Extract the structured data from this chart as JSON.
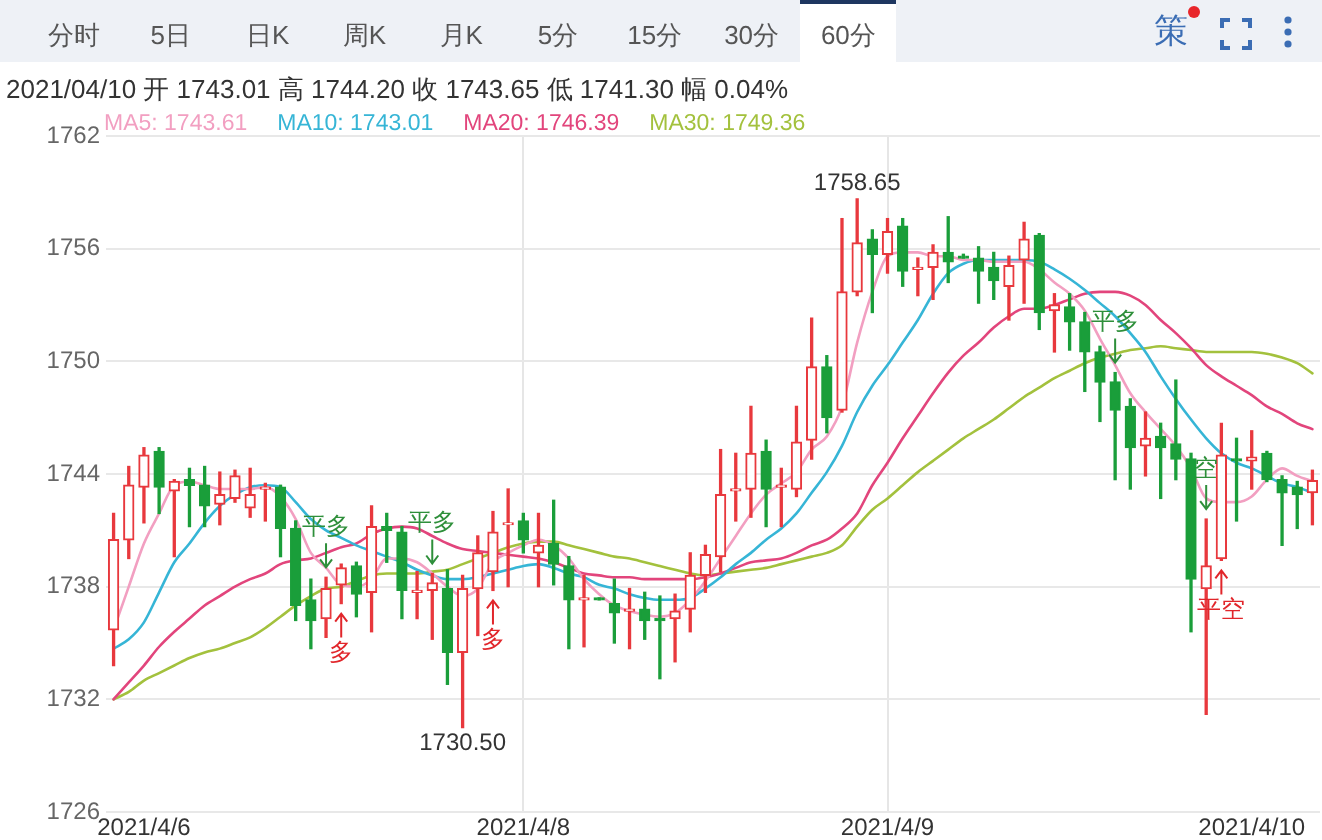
{
  "chart_data": {
    "type": "candlestick",
    "subtitle": "2021/04/10 开 1743.01 高 1744.20 收 1743.65 低 1741.30 幅 0.04%",
    "annotations": [
      "分时",
      "5日",
      "日K",
      "周K",
      "月K",
      "5分",
      "15分",
      "30分",
      "60分",
      "策",
      {
        "text": "平多",
        "y": 1738.5
      },
      {
        "text": "多",
        "y": 1737.1
      },
      {
        "text": "平多",
        "y": 1738.7
      },
      {
        "text": "1730.50",
        "y": 1730.5
      },
      {
        "text": "多",
        "y": 1737.8
      },
      {
        "text": "1758.65",
        "y": 1758.65
      },
      {
        "text": "平多",
        "y": 1749.4
      },
      {
        "text": "空",
        "y": 1741.6
      },
      {
        "text": "平空",
        "y": 1739.4
      }
    ],
    "categories": [
      null,
      null,
      "2021/4/6",
      null,
      null,
      null,
      null,
      null,
      null,
      null,
      null,
      null,
      null,
      null,
      null,
      null,
      null,
      null,
      null,
      null,
      null,
      null,
      null,
      null,
      null,
      null,
      null,
      "2021/4/8",
      null,
      null,
      null,
      null,
      null,
      null,
      null,
      null,
      null,
      null,
      null,
      null,
      null,
      null,
      null,
      null,
      null,
      null,
      null,
      null,
      null,
      null,
      null,
      "2021/4/9",
      null,
      null,
      null,
      null,
      null,
      null,
      null,
      null,
      null,
      null,
      null,
      null,
      null,
      null,
      null,
      null,
      null,
      null,
      null,
      null,
      null,
      null,
      null,
      "2021/4/10",
      null,
      null,
      null,
      null
    ],
    "ohlc": [
      [
        1735.7,
        1741.9,
        1733.8,
        1740.5
      ],
      [
        1740.5,
        1744.4,
        1739.5,
        1743.4
      ],
      [
        1743.3,
        1745.4,
        1741.4,
        1745.0
      ],
      [
        1745.2,
        1745.4,
        1741.9,
        1743.3
      ],
      [
        1743.1,
        1743.7,
        1739.6,
        1743.6
      ],
      [
        1743.7,
        1744.3,
        1741.2,
        1743.4
      ],
      [
        1743.4,
        1744.4,
        1741.2,
        1742.3
      ],
      [
        1742.4,
        1744.1,
        1741.3,
        1742.9
      ],
      [
        1742.7,
        1744.2,
        1742.5,
        1743.9
      ],
      [
        1742.2,
        1744.3,
        1741.7,
        1742.9
      ],
      [
        1743.2,
        1743.5,
        1741.5,
        1743.3
      ],
      [
        1743.3,
        1743.4,
        1739.6,
        1741.1
      ],
      [
        1741.1,
        1741.5,
        1736.2,
        1737.0
      ],
      [
        1737.3,
        1738.4,
        1734.7,
        1736.2
      ],
      [
        1736.3,
        1738.5,
        1735.3,
        1737.9
      ],
      [
        1738.1,
        1739.2,
        1737.1,
        1739.0
      ],
      [
        1739.1,
        1739.3,
        1736.4,
        1737.6
      ],
      [
        1737.7,
        1742.3,
        1735.6,
        1741.2
      ],
      [
        1741.2,
        1741.9,
        1739.3,
        1741.0
      ],
      [
        1740.9,
        1741.2,
        1736.3,
        1737.8
      ],
      [
        1737.7,
        1738.8,
        1736.3,
        1737.8
      ],
      [
        1737.8,
        1738.7,
        1735.2,
        1738.2
      ],
      [
        1737.9,
        1738.9,
        1732.8,
        1734.5
      ],
      [
        1734.5,
        1738.6,
        1730.5,
        1737.9
      ],
      [
        1737.9,
        1740.7,
        1735.4,
        1739.8
      ],
      [
        1738.8,
        1742.0,
        1737.8,
        1740.9
      ],
      [
        1741.3,
        1743.2,
        1738.0,
        1741.4
      ],
      [
        1741.5,
        1741.9,
        1739.8,
        1740.5
      ],
      [
        1739.8,
        1741.9,
        1738.0,
        1740.2
      ],
      [
        1740.3,
        1742.6,
        1738.1,
        1739.2
      ],
      [
        1739.1,
        1739.6,
        1734.7,
        1737.3
      ],
      [
        1737.3,
        1738.6,
        1734.8,
        1737.4
      ],
      [
        1737.4,
        1737.4,
        1737.3,
        1737.3
      ],
      [
        1737.1,
        1738.4,
        1735.0,
        1736.6
      ],
      [
        1736.7,
        1737.9,
        1734.7,
        1736.8
      ],
      [
        1736.8,
        1737.7,
        1735.2,
        1736.2
      ],
      [
        1736.3,
        1737.5,
        1733.1,
        1736.2
      ],
      [
        1736.3,
        1737.6,
        1734.0,
        1736.7
      ],
      [
        1736.8,
        1739.8,
        1735.6,
        1738.6
      ],
      [
        1738.6,
        1740.2,
        1737.7,
        1739.7
      ],
      [
        1739.6,
        1745.3,
        1738.8,
        1742.9
      ],
      [
        1743.1,
        1745.1,
        1741.5,
        1743.2
      ],
      [
        1743.2,
        1747.6,
        1741.7,
        1745.1
      ],
      [
        1745.2,
        1745.8,
        1741.2,
        1743.2
      ],
      [
        1743.3,
        1744.3,
        1741.2,
        1743.4
      ],
      [
        1743.2,
        1747.6,
        1742.8,
        1745.7
      ],
      [
        1745.8,
        1752.3,
        1744.8,
        1749.7
      ],
      [
        1749.7,
        1750.3,
        1746.2,
        1747.0
      ],
      [
        1747.4,
        1757.6,
        1747.3,
        1753.7
      ],
      [
        1753.7,
        1758.65,
        1753.5,
        1756.3
      ],
      [
        1756.5,
        1757.0,
        1752.6,
        1755.7
      ],
      [
        1755.7,
        1757.6,
        1754.7,
        1756.9
      ],
      [
        1757.2,
        1757.6,
        1754.0,
        1754.8
      ],
      [
        1754.9,
        1755.5,
        1753.5,
        1755.0
      ],
      [
        1755.0,
        1756.2,
        1753.3,
        1755.8
      ],
      [
        1755.8,
        1757.7,
        1754.2,
        1755.3
      ],
      [
        1755.6,
        1755.7,
        1755.5,
        1755.5
      ],
      [
        1755.5,
        1756.1,
        1753.1,
        1754.8
      ],
      [
        1755.0,
        1755.8,
        1753.3,
        1754.3
      ],
      [
        1754.0,
        1755.6,
        1752.2,
        1755.1
      ],
      [
        1755.4,
        1757.4,
        1753.1,
        1756.5
      ],
      [
        1756.7,
        1756.8,
        1751.7,
        1752.6
      ],
      [
        1752.7,
        1753.6,
        1750.5,
        1753.0
      ],
      [
        1752.9,
        1753.6,
        1750.6,
        1752.1
      ],
      [
        1752.1,
        1752.6,
        1748.4,
        1750.5
      ],
      [
        1750.5,
        1750.8,
        1746.8,
        1748.9
      ],
      [
        1748.9,
        1749.4,
        1743.7,
        1747.4
      ],
      [
        1747.6,
        1748.0,
        1743.2,
        1745.4
      ],
      [
        1745.5,
        1747.3,
        1743.9,
        1745.9
      ],
      [
        1746.0,
        1746.7,
        1742.7,
        1745.4
      ],
      [
        1745.6,
        1749.0,
        1743.7,
        1744.8
      ],
      [
        1744.8,
        1745.1,
        1735.6,
        1738.4
      ],
      [
        1737.9,
        1741.6,
        1731.2,
        1739.1
      ],
      [
        1739.5,
        1746.7,
        1739.4,
        1745.0
      ],
      [
        1744.8,
        1745.9,
        1741.5,
        1744.7
      ],
      [
        1744.7,
        1746.3,
        1743.2,
        1744.9
      ],
      [
        1745.1,
        1745.2,
        1743.6,
        1743.7
      ],
      [
        1743.7,
        1743.9,
        1740.2,
        1743.0
      ],
      [
        1743.3,
        1743.6,
        1741.1,
        1742.9
      ],
      [
        1743.01,
        1744.2,
        1741.3,
        1743.65
      ]
    ],
    "colors": [
      "#e8383d",
      "#e8383d",
      "#e8383d",
      "#1a9e3a",
      "#e8383d",
      "#1a9e3a",
      "#1a9e3a",
      "#e8383d",
      "#e8383d",
      "#e8383d",
      "#e8383d",
      "#1a9e3a",
      "#1a9e3a",
      "#1a9e3a",
      "#e8383d",
      "#e8383d",
      "#1a9e3a",
      "#e8383d",
      "#1a9e3a",
      "#1a9e3a",
      "#e8383d",
      "#e8383d",
      "#1a9e3a",
      "#e8383d",
      "#e8383d",
      "#e8383d",
      "#e8383d",
      "#1a9e3a",
      "#e8383d",
      "#1a9e3a",
      "#1a9e3a",
      "#e8383d",
      "#1a9e3a",
      "#1a9e3a",
      "#e8383d",
      "#1a9e3a",
      "#1a9e3a",
      "#e8383d",
      "#e8383d",
      "#e8383d",
      "#e8383d",
      "#e8383d",
      "#e8383d",
      "#1a9e3a",
      "#e8383d",
      "#e8383d",
      "#e8383d",
      "#1a9e3a",
      "#e8383d",
      "#e8383d",
      "#1a9e3a",
      "#e8383d",
      "#1a9e3a",
      "#e8383d",
      "#e8383d",
      "#1a9e3a",
      "#1a9e3a",
      "#1a9e3a",
      "#1a9e3a",
      "#e8383d",
      "#e8383d",
      "#1a9e3a",
      "#e8383d",
      "#1a9e3a",
      "#1a9e3a",
      "#1a9e3a",
      "#1a9e3a",
      "#1a9e3a",
      "#e8383d",
      "#1a9e3a",
      "#1a9e3a",
      "#1a9e3a",
      "#e8383d",
      "#e8383d",
      "#1a9e3a",
      "#e8383d",
      "#1a9e3a",
      "#1a9e3a",
      "#1a9e3a",
      "#e8383d"
    ],
    "series": [
      {
        "type": "line",
        "name": "MA5: 1743.61",
        "color": "#f29fc1",
        "values": [
          1735.7,
          1738.0,
          1740.3,
          1741.9,
          1743.4,
          1743.6,
          1743.4,
          1743.2,
          1743.2,
          1743.2,
          1743.3,
          1742.8,
          1741.6,
          1739.8,
          1739.0,
          1738.1,
          1738.0,
          1738.4,
          1739.5,
          1739.5,
          1739.3,
          1738.7,
          1738.0,
          1737.5,
          1737.9,
          1739.3,
          1739.8,
          1740.2,
          1740.5,
          1740.2,
          1739.5,
          1738.4,
          1737.6,
          1737.0,
          1736.7,
          1736.5,
          1736.4,
          1736.6,
          1737.3,
          1738.3,
          1739.5,
          1740.7,
          1741.9,
          1742.9,
          1743.5,
          1744.1,
          1745.3,
          1746.0,
          1747.6,
          1751.0,
          1753.7,
          1755.6,
          1755.8,
          1755.8,
          1755.6,
          1755.6,
          1755.4,
          1755.4,
          1755.3,
          1755.3,
          1755.3,
          1754.9,
          1754.2,
          1753.6,
          1752.7,
          1751.2,
          1749.8,
          1748.3,
          1747.3,
          1746.4,
          1745.5,
          1744.3,
          1742.7,
          1742.5,
          1742.5,
          1742.8,
          1743.7,
          1744.3,
          1743.9,
          1743.61
        ]
      },
      {
        "type": "line",
        "name": "MA10: 1743.01",
        "color": "#36b5d6",
        "values": [
          1734.7,
          1735.2,
          1736.1,
          1737.7,
          1739.3,
          1740.3,
          1741.4,
          1742.3,
          1742.9,
          1743.3,
          1743.4,
          1743.3,
          1742.5,
          1741.6,
          1741.0,
          1740.6,
          1740.2,
          1739.9,
          1739.6,
          1739.3,
          1738.9,
          1738.6,
          1738.4,
          1738.4,
          1738.5,
          1738.7,
          1738.9,
          1739.1,
          1739.2,
          1739.0,
          1738.7,
          1738.5,
          1738.1,
          1737.9,
          1737.6,
          1737.4,
          1737.3,
          1737.3,
          1737.4,
          1737.9,
          1738.5,
          1739.2,
          1739.8,
          1740.5,
          1741.1,
          1741.9,
          1743.0,
          1744.1,
          1745.5,
          1747.3,
          1748.7,
          1749.8,
          1751.0,
          1752.2,
          1753.6,
          1754.7,
          1755.2,
          1755.4,
          1755.4,
          1755.4,
          1755.4,
          1755.3,
          1754.9,
          1754.4,
          1753.8,
          1753.1,
          1752.4,
          1751.5,
          1750.5,
          1749.2,
          1748.0,
          1746.9,
          1745.9,
          1745.1,
          1744.6,
          1744.3,
          1743.9,
          1743.5,
          1743.3,
          1743.01
        ]
      },
      {
        "type": "line",
        "name": "MA20: 1746.39",
        "color": "#e2457c",
        "values": [
          1732.0,
          1732.9,
          1733.8,
          1734.8,
          1735.6,
          1736.3,
          1737.0,
          1737.5,
          1738.0,
          1738.4,
          1738.7,
          1739.2,
          1739.4,
          1739.5,
          1739.8,
          1740.1,
          1740.3,
          1740.8,
          1741.1,
          1741.2,
          1741.1,
          1740.7,
          1740.3,
          1740.0,
          1739.9,
          1739.8,
          1739.7,
          1739.6,
          1739.5,
          1739.3,
          1739.0,
          1738.7,
          1738.6,
          1738.5,
          1738.5,
          1738.4,
          1738.4,
          1738.4,
          1738.4,
          1738.5,
          1738.7,
          1739.0,
          1739.3,
          1739.4,
          1739.5,
          1739.8,
          1740.2,
          1740.5,
          1741.1,
          1741.9,
          1743.4,
          1744.6,
          1745.9,
          1747.1,
          1748.3,
          1749.4,
          1750.3,
          1751.0,
          1751.8,
          1752.4,
          1752.8,
          1752.8,
          1753.0,
          1753.3,
          1753.6,
          1753.7,
          1753.7,
          1753.5,
          1753.0,
          1752.2,
          1751.5,
          1750.7,
          1749.8,
          1749.2,
          1748.7,
          1748.2,
          1747.6,
          1747.2,
          1746.7,
          1746.39
        ]
      },
      {
        "type": "line",
        "name": "MA30: 1749.36",
        "color": "#a3c13d",
        "values": [
          1732.0,
          1732.4,
          1733.0,
          1733.4,
          1733.8,
          1734.2,
          1734.5,
          1734.7,
          1735.0,
          1735.3,
          1735.8,
          1736.4,
          1737.0,
          1737.5,
          1737.9,
          1738.0,
          1738.3,
          1738.6,
          1738.7,
          1738.7,
          1738.7,
          1738.8,
          1738.9,
          1739.2,
          1739.5,
          1739.8,
          1740.1,
          1740.3,
          1740.4,
          1740.4,
          1740.2,
          1740.0,
          1739.8,
          1739.6,
          1739.5,
          1739.3,
          1739.1,
          1738.9,
          1738.7,
          1738.6,
          1738.7,
          1738.8,
          1738.9,
          1739.0,
          1739.2,
          1739.4,
          1739.6,
          1739.8,
          1740.2,
          1741.2,
          1742.1,
          1742.7,
          1743.4,
          1744.1,
          1744.7,
          1745.3,
          1745.9,
          1746.4,
          1746.9,
          1747.5,
          1748.1,
          1748.6,
          1749.1,
          1749.5,
          1749.9,
          1750.2,
          1750.4,
          1750.6,
          1750.7,
          1750.8,
          1750.7,
          1750.6,
          1750.5,
          1750.5,
          1750.5,
          1750.5,
          1750.4,
          1750.2,
          1749.9,
          1749.36
        ]
      }
    ],
    "ylim": [
      1726,
      1762
    ],
    "yticks": [
      1726,
      1732,
      1738,
      1744,
      1750,
      1756,
      1762
    ],
    "grid": true,
    "legend": "top left"
  }
}
